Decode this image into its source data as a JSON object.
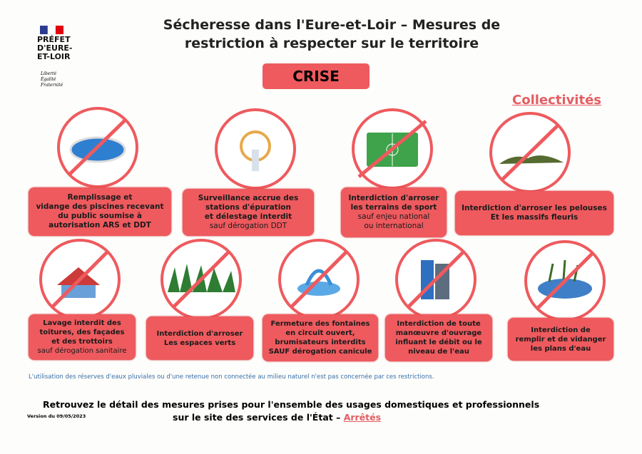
{
  "header": {
    "logo": {
      "lines": [
        "PRÉFET",
        "D'EURE-",
        "ET-LOIR"
      ],
      "motto": [
        "Liberté",
        "Égalité",
        "Fraternité"
      ]
    },
    "title": [
      "Sécheresse dans l'Eure-et-Loir – Mesures de",
      "restriction à respecter sur le territoire"
    ],
    "level": "CRISE",
    "audience": "Collectivités"
  },
  "measures": [
    {
      "lines": [
        "Remplissage et",
        "vidange des piscines recevant",
        "du public soumise à",
        "autorisation ARS et DDT"
      ]
    },
    {
      "lines": [
        "Surveillance accrue des",
        "stations d'épuration",
        "et délestage interdit",
        "sauf dérogation DDT"
      ]
    },
    {
      "lines": [
        "Interdiction d'arroser",
        "les terrains de sport",
        "sauf enjeu national",
        "ou international"
      ]
    },
    {
      "lines": [
        "Interdiction d'arroser les pelouses",
        "Et les massifs fleuris"
      ]
    },
    {
      "lines": [
        "Lavage interdit des",
        "toitures, des façades",
        "et des trottoirs",
        "sauf dérogation sanitaire"
      ]
    },
    {
      "lines": [
        "Interdiction d'arroser",
        "Les espaces verts"
      ]
    },
    {
      "lines": [
        "Fermeture des fontaines",
        "en circuit ouvert,",
        "brumisateurs interdits",
        "SAUF dérogation canicule"
      ]
    },
    {
      "lines": [
        "Interdiction de toute",
        "manœuvre d'ouvrage",
        "influant le débit ou le",
        "niveau de l'eau"
      ]
    },
    {
      "lines": [
        "Interdiction de",
        "remplir et de vidanger",
        "les plans d'eau"
      ]
    }
  ],
  "note": "L'utilisation des réserves d'eaux pluviales ou d'une retenue non connectée au milieu naturel n'est pas concernée par ces restrictions.",
  "footer": {
    "line1": "Retrouvez le détail des mesures prises pour l'ensemble des usages domestiques et professionnels",
    "line2": "sur le site des services de l'État –",
    "link": "Arrêtés",
    "version": "Version du 09/05/2023"
  }
}
